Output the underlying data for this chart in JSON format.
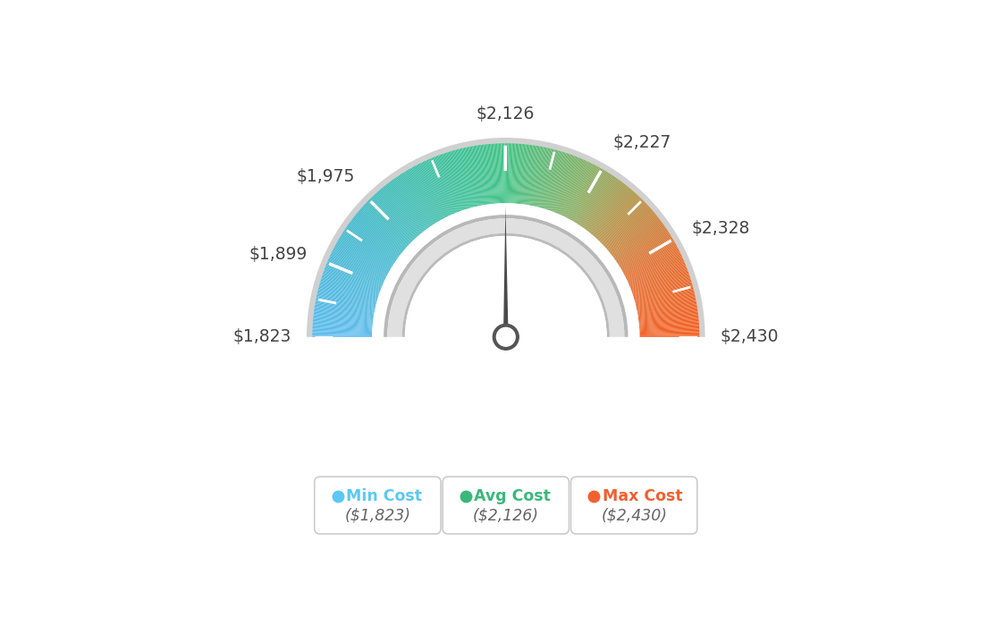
{
  "min_val": 1823,
  "max_val": 2430,
  "avg_val": 2126,
  "labels": [
    "$1,823",
    "$1,899",
    "$1,975",
    "$2,126",
    "$2,227",
    "$2,328",
    "$2,430"
  ],
  "label_values": [
    1823,
    1899,
    1975,
    2126,
    2227,
    2328,
    2430
  ],
  "tick_values": [
    1823,
    1861,
    1899,
    1937,
    1975,
    2050,
    2126,
    2176,
    2227,
    2278,
    2328,
    2379,
    2430
  ],
  "legend_items": [
    {
      "label": "Min Cost",
      "value": "($1,823)",
      "color": "#5bc8f5"
    },
    {
      "label": "Avg Cost",
      "value": "($2,126)",
      "color": "#3ab87a"
    },
    {
      "label": "Max Cost",
      "value": "($2,430)",
      "color": "#f26030"
    }
  ],
  "background_color": "#ffffff",
  "color_stops": [
    [
      0.0,
      [
        0.36,
        0.73,
        0.93
      ]
    ],
    [
      0.2,
      [
        0.25,
        0.72,
        0.8
      ]
    ],
    [
      0.4,
      [
        0.23,
        0.75,
        0.6
      ]
    ],
    [
      0.5,
      [
        0.25,
        0.76,
        0.52
      ]
    ],
    [
      0.65,
      [
        0.52,
        0.68,
        0.38
      ]
    ],
    [
      0.75,
      [
        0.72,
        0.55,
        0.25
      ]
    ],
    [
      0.85,
      [
        0.88,
        0.43,
        0.18
      ]
    ],
    [
      1.0,
      [
        0.95,
        0.37,
        0.13
      ]
    ]
  ]
}
